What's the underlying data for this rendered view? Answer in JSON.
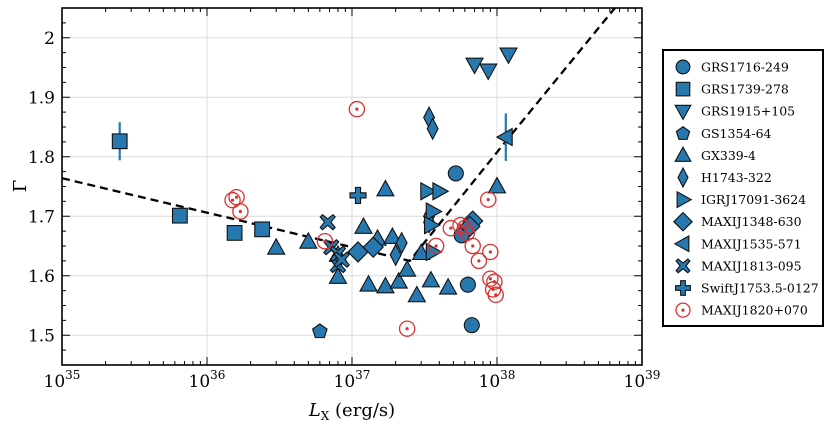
{
  "chart_data": {
    "type": "scatter",
    "xscale": "log",
    "xlim": [
      1e+35,
      1e+39
    ],
    "ylim": [
      1.45,
      2.05
    ],
    "xlabel_main": "L",
    "xlabel_sub": "X",
    "xlabel_unit": " (erg/s)",
    "ylabel": "Γ",
    "x_ticks": [
      {
        "value": 1e+35,
        "base": "10",
        "exp": "35"
      },
      {
        "value": 1e+36,
        "base": "10",
        "exp": "36"
      },
      {
        "value": 1e+37,
        "base": "10",
        "exp": "37"
      },
      {
        "value": 1e+38,
        "base": "10",
        "exp": "38"
      },
      {
        "value": 1e+39,
        "base": "10",
        "exp": "39"
      }
    ],
    "y_ticks": [
      "1.5",
      "1.6",
      "1.7",
      "1.8",
      "1.9",
      "2"
    ],
    "grid": true,
    "legend_position": "right",
    "fit_line": {
      "style": "dashed",
      "points": [
        [
          1e+35,
          1.764
        ],
        [
          2.5e+37,
          1.625
        ],
        [
          1.1e+38,
          1.82
        ],
        [
          6.5e+38,
          2.05
        ]
      ]
    },
    "series": [
      {
        "name": "GRS1716-249",
        "marker": "circle",
        "points": [
          [
            5.2e+37,
            1.772
          ],
          [
            6.3e+37,
            1.585
          ],
          [
            6.7e+37,
            1.517
          ],
          [
            5.7e+37,
            1.668
          ]
        ]
      },
      {
        "name": "GRS1739-278",
        "marker": "square",
        "points": [
          [
            2.5e+35,
            1.826
          ],
          [
            6.5e+35,
            1.701
          ],
          [
            1.55e+36,
            1.672
          ],
          [
            2.4e+36,
            1.678
          ]
        ],
        "yerr": [
          0.032,
          0.0,
          0.0,
          0.0
        ]
      },
      {
        "name": "GRS1915+105",
        "marker": "triangle-down",
        "points": [
          [
            7e+37,
            1.955
          ],
          [
            8.7e+37,
            1.945
          ],
          [
            1.2e+38,
            1.972
          ]
        ]
      },
      {
        "name": "GS1354-64",
        "marker": "pentagon",
        "points": [
          [
            6e+36,
            1.507
          ]
        ]
      },
      {
        "name": "GX339-4",
        "marker": "triangle-up",
        "points": [
          [
            3e+36,
            1.647
          ],
          [
            5e+36,
            1.657
          ],
          [
            8e+36,
            1.598
          ],
          [
            1.2e+37,
            1.682
          ],
          [
            1.3e+37,
            1.585
          ],
          [
            1.5e+37,
            1.662
          ],
          [
            1.7e+37,
            1.582
          ],
          [
            1.7e+37,
            1.745
          ],
          [
            1.9e+37,
            1.665
          ],
          [
            2.1e+37,
            1.59
          ],
          [
            2.4e+37,
            1.61
          ],
          [
            2.8e+37,
            1.567
          ],
          [
            3.5e+37,
            1.592
          ],
          [
            4.6e+37,
            1.58
          ],
          [
            1e+38,
            1.75
          ],
          [
            3e+37,
            1.638
          ],
          [
            8e+36,
            1.635
          ]
        ]
      },
      {
        "name": "H1743-322",
        "marker": "thin-diamond",
        "points": [
          [
            3.4e+37,
            1.866
          ],
          [
            3.6e+37,
            1.847
          ],
          [
            3.4e+37,
            1.7
          ],
          [
            2.2e+37,
            1.655
          ],
          [
            2e+37,
            1.635
          ],
          [
            3.4e+37,
            1.69
          ]
        ]
      },
      {
        "name": "IGRJ17091-3624",
        "marker": "triangle-right",
        "points": [
          [
            3.3e+37,
            1.742
          ],
          [
            4e+37,
            1.742
          ],
          [
            3.6e+37,
            1.708
          ],
          [
            3.5e+37,
            1.685
          ],
          [
            3.6e+37,
            1.64
          ]
        ]
      },
      {
        "name": "MAXIJ1348-630",
        "marker": "diamond",
        "points": [
          [
            1.1e+37,
            1.64
          ],
          [
            1.4e+37,
            1.648
          ],
          [
            6.8e+37,
            1.692
          ],
          [
            6.5e+37,
            1.683
          ]
        ]
      },
      {
        "name": "MAXIJ1535-571",
        "marker": "triangle-left",
        "points": [
          [
            1.15e+38,
            1.833
          ]
        ],
        "yerr": [
          0.04
        ]
      },
      {
        "name": "MAXIJ1813-095",
        "marker": "x-filled",
        "points": [
          [
            6.8e+36,
            1.69
          ],
          [
            7.2e+36,
            1.648
          ],
          [
            8e+36,
            1.618
          ],
          [
            8e+36,
            1.637
          ],
          [
            8.5e+36,
            1.627
          ]
        ]
      },
      {
        "name": "SwiftJ1753.5-0127",
        "marker": "plus-filled",
        "points": [
          [
            1.1e+37,
            1.735
          ]
        ]
      },
      {
        "name": "MAXIJ1820+070",
        "marker": "circle-dot-open",
        "points": [
          [
            1.08e+37,
            1.88
          ],
          [
            1.5e+36,
            1.727
          ],
          [
            1.6e+36,
            1.732
          ],
          [
            1.7e+36,
            1.708
          ],
          [
            6.5e+36,
            1.658
          ],
          [
            2.4e+37,
            1.511
          ],
          [
            3.8e+37,
            1.65
          ],
          [
            4.8e+37,
            1.68
          ],
          [
            5.6e+37,
            1.685
          ],
          [
            6e+37,
            1.68
          ],
          [
            6.2e+37,
            1.672
          ],
          [
            6.8e+37,
            1.65
          ],
          [
            7.5e+37,
            1.625
          ],
          [
            8.7e+37,
            1.728
          ],
          [
            9e+37,
            1.64
          ],
          [
            9e+37,
            1.595
          ],
          [
            9.6e+37,
            1.59
          ],
          [
            9.8e+37,
            1.568
          ],
          [
            9.4e+37,
            1.577
          ]
        ]
      }
    ]
  },
  "colors": {
    "marker_fill": "#2878b0",
    "marker_edge": "#111111",
    "open_marker": "#d93030",
    "errorbar": "#2878b0",
    "grid": "#dcdcdc"
  }
}
